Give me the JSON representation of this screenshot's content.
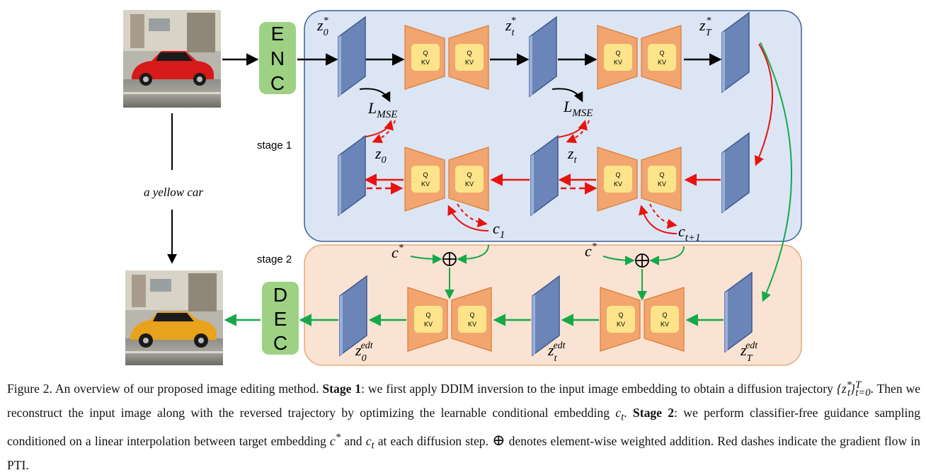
{
  "labels": {
    "enc": [
      "E",
      "N",
      "C"
    ],
    "dec": [
      "D",
      "E",
      "C"
    ],
    "qk_top": "Q",
    "qk_bottom": "KV",
    "stage1": "stage 1",
    "stage2": "stage 2",
    "prompt": "a yellow car",
    "z0_star": "z",
    "z0_star_sub": "0",
    "zt_star": "z",
    "zt_star_sub": "t",
    "zT_star": "z",
    "zT_star_sub": "T",
    "star": "*",
    "lmse": "L",
    "lmse_sub": "MSE",
    "z0": "z",
    "z0_sub": "0",
    "zt": "z",
    "zt_sub": "t",
    "c1": "c",
    "c1_sub": "1",
    "ct1": "c",
    "ct1_sub": "t+1",
    "cstar": "c",
    "edt": "edt",
    "z_edt_0_sub": "0",
    "z_edt_t_sub": "t",
    "z_edt_T_sub": "T",
    "oplus": "⊕"
  },
  "colors": {
    "stage1_fill": "#dce5f4",
    "stage1_border": "#3e5e98",
    "stage2_fill": "#fbe3d3",
    "stage2_border": "#e6a878",
    "latent_fill": "#6b85b8",
    "latent_edge": "#3f5a90",
    "unet_fill": "#f2a56e",
    "unet_edge": "#d97d3b",
    "attn_fill": "#fde48a",
    "encdec_fill": "#9ed184",
    "red": "#e8130f",
    "green": "#16a84a",
    "black": "#000000"
  },
  "caption": {
    "fig": "Figure 2. An overview of our proposed image editing method.",
    "stage1": "Stage 1",
    "part1": ": we first apply DDIM inversion to the input image embedding to obtain a diffusion trajectory",
    "traj": "{z*_t}^T_{t=0}",
    "part2": ". Then we reconstruct the input image along with the reversed trajectory by optimizing the learnable conditional embedding",
    "ct": "c_t",
    "part3": ".",
    "stage2": "Stage 2",
    "part4": ": we perform classifier-free guidance sampling conditioned on a linear interpolation between target embedding",
    "cs": "c*",
    "part5": "and",
    "ct2": "c_t",
    "part6": "at each diffusion step.",
    "oplus": "⊕",
    "part7": "denotes element-wise weighted addition. Red dashes indicate the gradient flow in PTI."
  }
}
